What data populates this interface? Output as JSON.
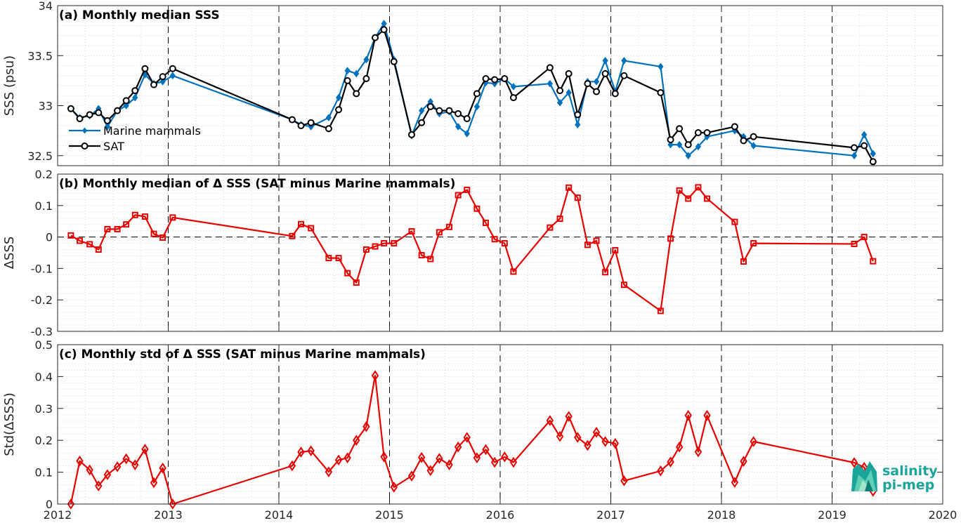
{
  "chart_data": [
    {
      "type": "line",
      "title": "(a) Monthly median SSS",
      "ylabel": "SSS (psu)",
      "xlim": [
        2012,
        2020
      ],
      "ylim": [
        32.4,
        34
      ],
      "yticks": [
        32.5,
        33,
        33.5,
        34
      ],
      "yticklabels": [
        "32.5",
        "33",
        "33.5",
        "34"
      ],
      "legend": {
        "placement": "left-middle"
      },
      "series": [
        {
          "name": "Marine mammals",
          "color": "#0072bd",
          "marker": "diamond",
          "x": [
            2012.12,
            2012.2,
            2012.29,
            2012.37,
            2012.45,
            2012.54,
            2012.62,
            2012.7,
            2012.79,
            2012.87,
            2012.95,
            2013.04,
            2014.12,
            2014.2,
            2014.29,
            2014.45,
            2014.54,
            2014.62,
            2014.7,
            2014.79,
            2014.87,
            2014.95,
            2015.04,
            2015.2,
            2015.29,
            2015.37,
            2015.45,
            2015.54,
            2015.62,
            2015.7,
            2015.79,
            2015.87,
            2015.95,
            2016.04,
            2016.12,
            2016.45,
            2016.54,
            2016.62,
            2016.7,
            2016.79,
            2016.87,
            2016.95,
            2017.04,
            2017.12,
            2017.45,
            2017.54,
            2017.62,
            2017.7,
            2017.79,
            2017.87,
            2018.12,
            2018.2,
            2018.29,
            2019.2,
            2019.29,
            2019.37
          ],
          "y": [
            32.97,
            32.88,
            32.9,
            32.97,
            32.79,
            32.95,
            33.0,
            33.08,
            33.31,
            33.22,
            33.24,
            33.3,
            32.86,
            32.81,
            32.79,
            32.88,
            33.08,
            33.35,
            33.32,
            33.46,
            33.68,
            33.82,
            33.46,
            32.7,
            32.95,
            33.04,
            32.92,
            32.94,
            32.79,
            32.72,
            32.99,
            33.23,
            33.22,
            33.27,
            33.19,
            33.22,
            33.03,
            33.13,
            32.81,
            33.24,
            33.24,
            33.45,
            33.14,
            33.45,
            33.39,
            32.61,
            32.61,
            32.5,
            32.59,
            32.69,
            32.75,
            32.69,
            32.6,
            32.5,
            32.71,
            32.52
          ]
        },
        {
          "name": "SAT",
          "color": "#000000",
          "marker": "circle",
          "x": [
            2012.12,
            2012.2,
            2012.29,
            2012.37,
            2012.45,
            2012.54,
            2012.62,
            2012.7,
            2012.79,
            2012.87,
            2012.95,
            2013.04,
            2014.12,
            2014.2,
            2014.29,
            2014.45,
            2014.54,
            2014.62,
            2014.7,
            2014.79,
            2014.87,
            2014.95,
            2015.04,
            2015.2,
            2015.29,
            2015.37,
            2015.45,
            2015.54,
            2015.62,
            2015.7,
            2015.79,
            2015.87,
            2015.95,
            2016.04,
            2016.12,
            2016.45,
            2016.54,
            2016.62,
            2016.7,
            2016.79,
            2016.87,
            2016.95,
            2017.04,
            2017.12,
            2017.45,
            2017.54,
            2017.62,
            2017.7,
            2017.79,
            2017.87,
            2018.12,
            2018.2,
            2018.29,
            2019.2,
            2019.29,
            2019.37
          ],
          "y": [
            32.97,
            32.87,
            32.91,
            32.93,
            32.85,
            32.95,
            33.05,
            33.15,
            33.37,
            33.21,
            33.29,
            33.37,
            32.86,
            32.8,
            32.83,
            32.77,
            32.96,
            33.25,
            33.12,
            33.27,
            33.68,
            33.76,
            33.44,
            32.71,
            32.83,
            32.99,
            32.95,
            32.95,
            32.92,
            32.87,
            33.12,
            33.27,
            33.26,
            33.27,
            33.08,
            33.38,
            33.15,
            33.32,
            32.91,
            33.22,
            33.14,
            33.32,
            33.12,
            33.3,
            33.13,
            32.66,
            32.77,
            32.61,
            32.73,
            32.73,
            32.79,
            32.65,
            32.69,
            32.58,
            32.6,
            32.44
          ]
        }
      ]
    },
    {
      "type": "line",
      "title": "(b) Monthly median of Δ SSS (SAT minus Marine mammals)",
      "ylabel": "ΔSSS",
      "xlim": [
        2012,
        2020
      ],
      "ylim": [
        -0.3,
        0.2
      ],
      "yticks": [
        -0.3,
        -0.2,
        -0.1,
        0,
        0.1,
        0.2
      ],
      "yticklabels": [
        "-0.3",
        "-0.2",
        "-0.1",
        "0",
        "0.1",
        "0.2"
      ],
      "reference_line": 0,
      "series": [
        {
          "color": "#e60000",
          "marker": "square",
          "x": [
            2012.12,
            2012.2,
            2012.29,
            2012.37,
            2012.45,
            2012.54,
            2012.62,
            2012.7,
            2012.79,
            2012.87,
            2012.95,
            2013.04,
            2014.12,
            2014.2,
            2014.29,
            2014.45,
            2014.54,
            2014.62,
            2014.7,
            2014.79,
            2014.87,
            2014.95,
            2015.04,
            2015.2,
            2015.29,
            2015.37,
            2015.45,
            2015.54,
            2015.62,
            2015.7,
            2015.79,
            2015.87,
            2015.95,
            2016.04,
            2016.12,
            2016.45,
            2016.54,
            2016.62,
            2016.7,
            2016.79,
            2016.87,
            2016.95,
            2017.04,
            2017.12,
            2017.45,
            2017.54,
            2017.62,
            2017.7,
            2017.79,
            2017.87,
            2018.12,
            2018.2,
            2018.29,
            2019.2,
            2019.29,
            2019.37
          ],
          "y": [
            0.005,
            -0.012,
            -0.023,
            -0.04,
            0.025,
            0.025,
            0.04,
            0.07,
            0.065,
            0.01,
            -0.002,
            0.062,
            0.003,
            0.041,
            0.028,
            -0.067,
            -0.067,
            -0.115,
            -0.145,
            -0.04,
            -0.03,
            -0.02,
            -0.02,
            0.018,
            -0.058,
            -0.07,
            0.015,
            0.032,
            0.133,
            0.15,
            0.09,
            0.045,
            -0.007,
            -0.02,
            -0.11,
            0.03,
            0.058,
            0.157,
            0.125,
            -0.025,
            -0.012,
            -0.112,
            -0.042,
            -0.152,
            -0.235,
            -0.005,
            0.148,
            0.122,
            0.158,
            0.122,
            0.048,
            -0.078,
            -0.02,
            -0.022,
            0.0,
            -0.077
          ]
        }
      ]
    },
    {
      "type": "line",
      "title": "(c) Monthly std of Δ SSS (SAT minus Marine mammals)",
      "ylabel": "Std(ΔSSS)",
      "xlabel": "",
      "xlim": [
        2012,
        2020
      ],
      "ylim": [
        0,
        0.5
      ],
      "yticks": [
        0,
        0.1,
        0.2,
        0.3,
        0.4,
        0.5
      ],
      "yticklabels": [
        "0",
        "0.1",
        "0.2",
        "0.3",
        "0.4",
        "0.5"
      ],
      "xticks": [
        2012,
        2013,
        2014,
        2015,
        2016,
        2017,
        2018,
        2019,
        2020
      ],
      "xticklabels": [
        "2012",
        "2013",
        "2014",
        "2015",
        "2016",
        "2017",
        "2018",
        "2019",
        "2020"
      ],
      "series": [
        {
          "color": "#e60000",
          "marker": "diamond-open",
          "x": [
            2012.12,
            2012.2,
            2012.29,
            2012.37,
            2012.45,
            2012.54,
            2012.62,
            2012.7,
            2012.79,
            2012.87,
            2012.95,
            2013.04,
            2014.12,
            2014.2,
            2014.29,
            2014.45,
            2014.54,
            2014.62,
            2014.7,
            2014.79,
            2014.87,
            2014.95,
            2015.04,
            2015.2,
            2015.29,
            2015.37,
            2015.45,
            2015.54,
            2015.62,
            2015.7,
            2015.79,
            2015.87,
            2015.95,
            2016.04,
            2016.12,
            2016.45,
            2016.54,
            2016.62,
            2016.7,
            2016.79,
            2016.87,
            2016.95,
            2017.04,
            2017.12,
            2017.45,
            2017.54,
            2017.62,
            2017.7,
            2017.79,
            2017.87,
            2018.12,
            2018.2,
            2018.29,
            2019.2,
            2019.29,
            2019.37
          ],
          "y": [
            0.0,
            0.135,
            0.107,
            0.057,
            0.092,
            0.117,
            0.142,
            0.123,
            0.172,
            0.067,
            0.113,
            0.0,
            0.12,
            0.163,
            0.167,
            0.101,
            0.138,
            0.145,
            0.2,
            0.243,
            0.403,
            0.148,
            0.053,
            0.088,
            0.146,
            0.105,
            0.143,
            0.123,
            0.179,
            0.209,
            0.145,
            0.171,
            0.131,
            0.148,
            0.131,
            0.262,
            0.212,
            0.275,
            0.209,
            0.184,
            0.225,
            0.196,
            0.19,
            0.073,
            0.104,
            0.132,
            0.179,
            0.278,
            0.164,
            0.278,
            0.068,
            0.134,
            0.196,
            0.13,
            0.115,
            0.04
          ]
        }
      ]
    }
  ],
  "logo": {
    "line1": "salinity",
    "line2": "pi-mep"
  }
}
